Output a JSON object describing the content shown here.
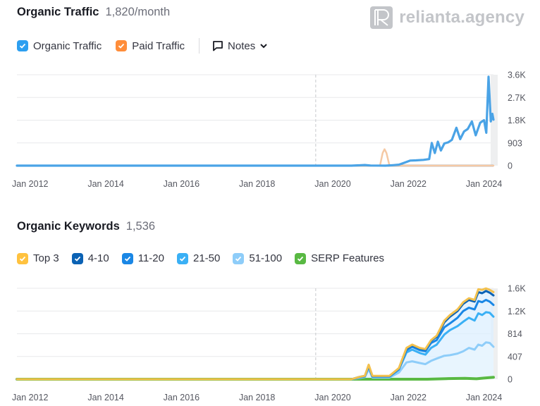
{
  "brand": {
    "logo_text": "relianta.agency"
  },
  "traffic": {
    "title": "Organic Traffic",
    "metric": "1,820/month",
    "legend": [
      {
        "label": "Organic Traffic",
        "color": "#2d9ff0",
        "checked": true
      },
      {
        "label": "Paid Traffic",
        "color": "#ff8d3a",
        "checked": true
      }
    ],
    "notes_label": "Notes"
  },
  "keywords": {
    "title": "Organic Keywords",
    "metric": "1,536",
    "legend": [
      {
        "label": "Top 3",
        "color": "#ffc23f",
        "checked": true
      },
      {
        "label": "4-10",
        "color": "#0b62b4",
        "checked": true
      },
      {
        "label": "11-20",
        "color": "#1a87e5",
        "checked": true
      },
      {
        "label": "21-50",
        "color": "#3ab0f5",
        "checked": true
      },
      {
        "label": "51-100",
        "color": "#8ecdf9",
        "checked": true
      },
      {
        "label": "SERP Features",
        "color": "#59b943",
        "checked": true
      }
    ]
  },
  "chart_data": [
    {
      "type": "line",
      "title": "Organic Traffic",
      "xlabel": "",
      "ylabel": "",
      "x_ticks": [
        "Jan 2012",
        "Jan 2014",
        "Jan 2016",
        "Jan 2018",
        "Jan 2020",
        "Jan 2022",
        "Jan 2024"
      ],
      "y_ticks": [
        "0",
        "903",
        "1.8K",
        "2.7K",
        "3.6K"
      ],
      "ylim": [
        0,
        3600
      ],
      "xlim": [
        2011.65,
        2024.25
      ],
      "grid": true,
      "marker_year": 2019.55,
      "series": [
        {
          "name": "Organic Traffic",
          "color": "#4aa3e6",
          "points": [
            [
              2011.65,
              0
            ],
            [
              2020.5,
              0
            ],
            [
              2020.85,
              25
            ],
            [
              2021.0,
              5
            ],
            [
              2021.4,
              0
            ],
            [
              2021.6,
              20
            ],
            [
              2021.75,
              40
            ],
            [
              2021.9,
              120
            ],
            [
              2022.05,
              200
            ],
            [
              2022.2,
              210
            ],
            [
              2022.4,
              230
            ],
            [
              2022.55,
              260
            ],
            [
              2022.62,
              900
            ],
            [
              2022.7,
              500
            ],
            [
              2022.78,
              950
            ],
            [
              2022.86,
              600
            ],
            [
              2022.95,
              880
            ],
            [
              2023.05,
              920
            ],
            [
              2023.15,
              1020
            ],
            [
              2023.27,
              1500
            ],
            [
              2023.37,
              1050
            ],
            [
              2023.47,
              1350
            ],
            [
              2023.57,
              1450
            ],
            [
              2023.68,
              1750
            ],
            [
              2023.78,
              1200
            ],
            [
              2023.9,
              1700
            ],
            [
              2024.0,
              1800
            ],
            [
              2024.06,
              1300
            ],
            [
              2024.12,
              3520
            ],
            [
              2024.18,
              1750
            ],
            [
              2024.22,
              2050
            ],
            [
              2024.25,
              1820
            ]
          ]
        },
        {
          "name": "Paid Traffic",
          "color": "#f5c9a4",
          "points": [
            [
              2011.65,
              0
            ],
            [
              2021.25,
              0
            ],
            [
              2021.32,
              500
            ],
            [
              2021.37,
              650
            ],
            [
              2021.42,
              500
            ],
            [
              2021.5,
              0
            ],
            [
              2024.25,
              0
            ]
          ]
        }
      ]
    },
    {
      "type": "area",
      "title": "Organic Keywords",
      "xlabel": "",
      "ylabel": "",
      "x_ticks": [
        "Jan 2012",
        "Jan 2014",
        "Jan 2016",
        "Jan 2018",
        "Jan 2020",
        "Jan 2022",
        "Jan 2024"
      ],
      "y_ticks": [
        "0",
        "407",
        "814",
        "1.2K",
        "1.6K"
      ],
      "ylim": [
        0,
        1628
      ],
      "xlim": [
        2011.65,
        2024.25
      ],
      "grid": true,
      "marker_year": 2019.55,
      "series": [
        {
          "name": "Top 3",
          "color": "#f3c14e",
          "points": [
            [
              2011.65,
              0
            ],
            [
              2020.5,
              0
            ],
            [
              2020.7,
              40
            ],
            [
              2020.85,
              60
            ],
            [
              2020.95,
              260
            ],
            [
              2021.05,
              60
            ],
            [
              2021.5,
              60
            ],
            [
              2021.75,
              200
            ],
            [
              2021.95,
              560
            ],
            [
              2022.1,
              620
            ],
            [
              2022.3,
              560
            ],
            [
              2022.45,
              540
            ],
            [
              2022.6,
              700
            ],
            [
              2022.75,
              780
            ],
            [
              2022.95,
              1050
            ],
            [
              2023.1,
              1150
            ],
            [
              2023.3,
              1250
            ],
            [
              2023.45,
              1380
            ],
            [
              2023.6,
              1450
            ],
            [
              2023.75,
              1420
            ],
            [
              2023.85,
              1610
            ],
            [
              2023.95,
              1600
            ],
            [
              2024.05,
              1625
            ],
            [
              2024.15,
              1600
            ],
            [
              2024.25,
              1560
            ]
          ]
        },
        {
          "name": "4-10",
          "color": "#0b62b4",
          "points": [
            [
              2011.65,
              0
            ],
            [
              2020.5,
              0
            ],
            [
              2020.7,
              40
            ],
            [
              2020.85,
              60
            ],
            [
              2020.95,
              250
            ],
            [
              2021.05,
              55
            ],
            [
              2021.5,
              55
            ],
            [
              2021.75,
              195
            ],
            [
              2021.95,
              550
            ],
            [
              2022.1,
              610
            ],
            [
              2022.3,
              550
            ],
            [
              2022.45,
              530
            ],
            [
              2022.6,
              690
            ],
            [
              2022.75,
              760
            ],
            [
              2022.95,
              1020
            ],
            [
              2023.1,
              1120
            ],
            [
              2023.3,
              1220
            ],
            [
              2023.45,
              1350
            ],
            [
              2023.6,
              1420
            ],
            [
              2023.75,
              1390
            ],
            [
              2023.85,
              1560
            ],
            [
              2023.95,
              1540
            ],
            [
              2024.05,
              1580
            ],
            [
              2024.15,
              1550
            ],
            [
              2024.25,
              1500
            ]
          ]
        },
        {
          "name": "11-20",
          "color": "#1a87e5",
          "points": [
            [
              2011.65,
              0
            ],
            [
              2020.5,
              0
            ],
            [
              2020.7,
              35
            ],
            [
              2020.85,
              55
            ],
            [
              2020.95,
              240
            ],
            [
              2021.05,
              50
            ],
            [
              2021.5,
              50
            ],
            [
              2021.75,
              185
            ],
            [
              2021.95,
              520
            ],
            [
              2022.1,
              580
            ],
            [
              2022.3,
              520
            ],
            [
              2022.45,
              500
            ],
            [
              2022.6,
              650
            ],
            [
              2022.75,
              700
            ],
            [
              2022.95,
              930
            ],
            [
              2023.1,
              1000
            ],
            [
              2023.3,
              1100
            ],
            [
              2023.45,
              1220
            ],
            [
              2023.6,
              1280
            ],
            [
              2023.75,
              1250
            ],
            [
              2023.85,
              1400
            ],
            [
              2023.95,
              1380
            ],
            [
              2024.05,
              1420
            ],
            [
              2024.15,
              1390
            ],
            [
              2024.25,
              1330
            ]
          ]
        },
        {
          "name": "21-50",
          "color": "#3ab0f5",
          "points": [
            [
              2011.65,
              0
            ],
            [
              2020.5,
              0
            ],
            [
              2020.7,
              30
            ],
            [
              2020.85,
              50
            ],
            [
              2020.95,
              220
            ],
            [
              2021.05,
              45
            ],
            [
              2021.5,
              45
            ],
            [
              2021.75,
              170
            ],
            [
              2021.95,
              480
            ],
            [
              2022.1,
              530
            ],
            [
              2022.3,
              470
            ],
            [
              2022.45,
              440
            ],
            [
              2022.6,
              560
            ],
            [
              2022.75,
              620
            ],
            [
              2022.95,
              800
            ],
            [
              2023.1,
              880
            ],
            [
              2023.3,
              950
            ],
            [
              2023.45,
              1030
            ],
            [
              2023.6,
              1100
            ],
            [
              2023.75,
              1050
            ],
            [
              2023.85,
              1180
            ],
            [
              2023.95,
              1150
            ],
            [
              2024.05,
              1200
            ],
            [
              2024.15,
              1190
            ],
            [
              2024.25,
              1120
            ]
          ]
        },
        {
          "name": "51-100",
          "color": "#8ecdf9",
          "points": [
            [
              2011.65,
              0
            ],
            [
              2020.5,
              0
            ],
            [
              2020.7,
              20
            ],
            [
              2020.85,
              40
            ],
            [
              2020.95,
              180
            ],
            [
              2021.05,
              30
            ],
            [
              2021.5,
              30
            ],
            [
              2021.75,
              120
            ],
            [
              2021.95,
              300
            ],
            [
              2022.1,
              320
            ],
            [
              2022.3,
              290
            ],
            [
              2022.45,
              270
            ],
            [
              2022.6,
              330
            ],
            [
              2022.75,
              370
            ],
            [
              2022.95,
              420
            ],
            [
              2023.1,
              430
            ],
            [
              2023.3,
              460
            ],
            [
              2023.45,
              500
            ],
            [
              2023.6,
              560
            ],
            [
              2023.75,
              530
            ],
            [
              2023.85,
              620
            ],
            [
              2023.95,
              600
            ],
            [
              2024.05,
              660
            ],
            [
              2024.15,
              650
            ],
            [
              2024.25,
              580
            ]
          ]
        },
        {
          "name": "SERP Features",
          "color": "#59b943",
          "points": [
            [
              2011.65,
              0
            ],
            [
              2022.5,
              0
            ],
            [
              2023.0,
              10
            ],
            [
              2023.5,
              15
            ],
            [
              2023.8,
              8
            ],
            [
              2024.0,
              20
            ],
            [
              2024.25,
              35
            ]
          ]
        }
      ]
    }
  ]
}
